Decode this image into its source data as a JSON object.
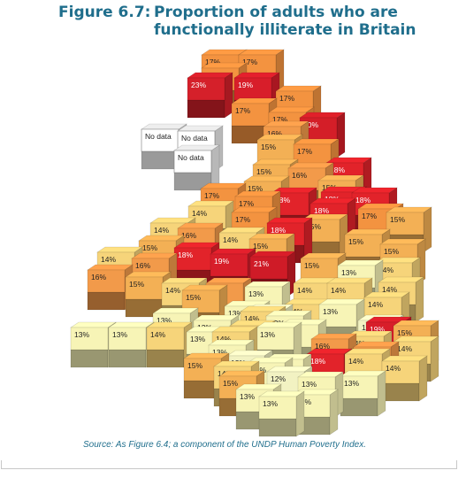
{
  "figure": {
    "label": "Figure 6.7:",
    "title_line1": "Proportion of adults who are",
    "title_line2": "functionally illiterate in Britain"
  },
  "source": "Source: As Figure 6.4; a component of the UNDP Human Poverty Index.",
  "no_data_label": "No data",
  "colors": {
    "none": "#ffffff",
    "12": "#f2f2c2",
    "13": "#f7f4b6",
    "14": "#f6d47a",
    "15": "#f3b055",
    "16": "#f29a4a",
    "17": "#f39340",
    "18": "#e2232a",
    "19": "#d81e2a",
    "20": "#d41e28",
    "21": "#cf1b27",
    "23": "#d5202a"
  },
  "chart_data": {
    "type": "table",
    "unit": "%",
    "cells": [
      {
        "label": "17%",
        "value": 17
      },
      {
        "label": "17%",
        "value": 17
      },
      {
        "label": "17%",
        "value": 17
      },
      {
        "label": "23%",
        "value": 23
      },
      {
        "label": "19%",
        "value": 19
      },
      {
        "label": "17%",
        "value": 17
      },
      {
        "label": "17%",
        "value": 17
      },
      {
        "label": "17%",
        "value": 17
      },
      {
        "label": "16%",
        "value": 16
      },
      {
        "label": "20%",
        "value": 20
      },
      {
        "label": "No data",
        "value": null
      },
      {
        "label": "No data",
        "value": null
      },
      {
        "label": "No data",
        "value": null
      },
      {
        "label": "15%",
        "value": 15
      },
      {
        "label": "17%",
        "value": 17
      },
      {
        "label": "15%",
        "value": 15
      },
      {
        "label": "16%",
        "value": 16
      },
      {
        "label": "18%",
        "value": 18
      },
      {
        "label": "15%",
        "value": 15
      },
      {
        "label": "15%",
        "value": 15
      },
      {
        "label": "18%",
        "value": 18
      },
      {
        "label": "17%",
        "value": 17
      },
      {
        "label": "17%",
        "value": 17
      },
      {
        "label": "18%",
        "value": 18
      },
      {
        "label": "18%",
        "value": 18
      },
      {
        "label": "14%",
        "value": 14
      },
      {
        "label": "18%",
        "value": 18
      },
      {
        "label": "17%",
        "value": 17
      },
      {
        "label": "15%",
        "value": 15
      },
      {
        "label": "17%",
        "value": 17
      },
      {
        "label": "18%",
        "value": 18
      },
      {
        "label": "16%",
        "value": 16
      },
      {
        "label": "15%",
        "value": 15
      },
      {
        "label": "14%",
        "value": 14
      },
      {
        "label": "14%",
        "value": 14
      },
      {
        "label": "15%",
        "value": 15
      },
      {
        "label": "15%",
        "value": 15
      },
      {
        "label": "15%",
        "value": 15
      },
      {
        "label": "15%",
        "value": 15
      },
      {
        "label": "18%",
        "value": 18
      },
      {
        "label": "19%",
        "value": 19
      },
      {
        "label": "21%",
        "value": 21
      },
      {
        "label": "15%",
        "value": 15
      },
      {
        "label": "14%",
        "value": 14
      },
      {
        "label": "16%",
        "value": 16
      },
      {
        "label": "13%",
        "value": 13
      },
      {
        "label": "14%",
        "value": 14
      },
      {
        "label": "16%",
        "value": 16
      },
      {
        "label": "15%",
        "value": 15
      },
      {
        "label": "14%",
        "value": 14
      },
      {
        "label": "16%",
        "value": 16
      },
      {
        "label": "14%",
        "value": 14
      },
      {
        "label": "13%",
        "value": 13
      },
      {
        "label": "14%",
        "value": 14
      },
      {
        "label": "14%",
        "value": 14
      },
      {
        "label": "15%",
        "value": 15
      },
      {
        "label": "14%",
        "value": 14
      },
      {
        "label": "13%",
        "value": 13
      },
      {
        "label": "14%",
        "value": 14
      },
      {
        "label": "12%",
        "value": 12
      },
      {
        "label": "13%",
        "value": 13
      },
      {
        "label": "13%",
        "value": 13
      },
      {
        "label": "13%",
        "value": 13
      },
      {
        "label": "14%",
        "value": 14
      },
      {
        "label": "13%",
        "value": 13
      },
      {
        "label": "12%",
        "value": 12
      },
      {
        "label": "14%",
        "value": 14
      },
      {
        "label": "19%",
        "value": 19
      },
      {
        "label": "15%",
        "value": 15
      },
      {
        "label": "13%",
        "value": 13
      },
      {
        "label": "13%",
        "value": 13
      },
      {
        "label": "14%",
        "value": 14
      },
      {
        "label": "13%",
        "value": 13
      },
      {
        "label": "13%",
        "value": 13
      },
      {
        "label": "14%",
        "value": 14
      },
      {
        "label": "13%",
        "value": 13
      },
      {
        "label": "16%",
        "value": 16
      },
      {
        "label": "14%",
        "value": 14
      },
      {
        "label": "13%",
        "value": 13
      },
      {
        "label": "14%",
        "value": 14
      },
      {
        "label": "16%",
        "value": 16
      },
      {
        "label": "12%",
        "value": 12
      },
      {
        "label": "13%",
        "value": 13
      },
      {
        "label": "18%",
        "value": 18
      },
      {
        "label": "14%",
        "value": 14
      },
      {
        "label": "14%",
        "value": 14
      },
      {
        "label": "13%",
        "value": 13
      },
      {
        "label": "12%",
        "value": 12
      },
      {
        "label": "13%",
        "value": 13
      },
      {
        "label": "15%",
        "value": 15
      },
      {
        "label": "13%",
        "value": 13
      },
      {
        "label": "13%",
        "value": 13
      },
      {
        "label": "13%",
        "value": 13
      },
      {
        "label": "13%",
        "value": 13
      },
      {
        "label": "14%",
        "value": 14
      },
      {
        "label": "15%",
        "value": 15
      }
    ]
  }
}
